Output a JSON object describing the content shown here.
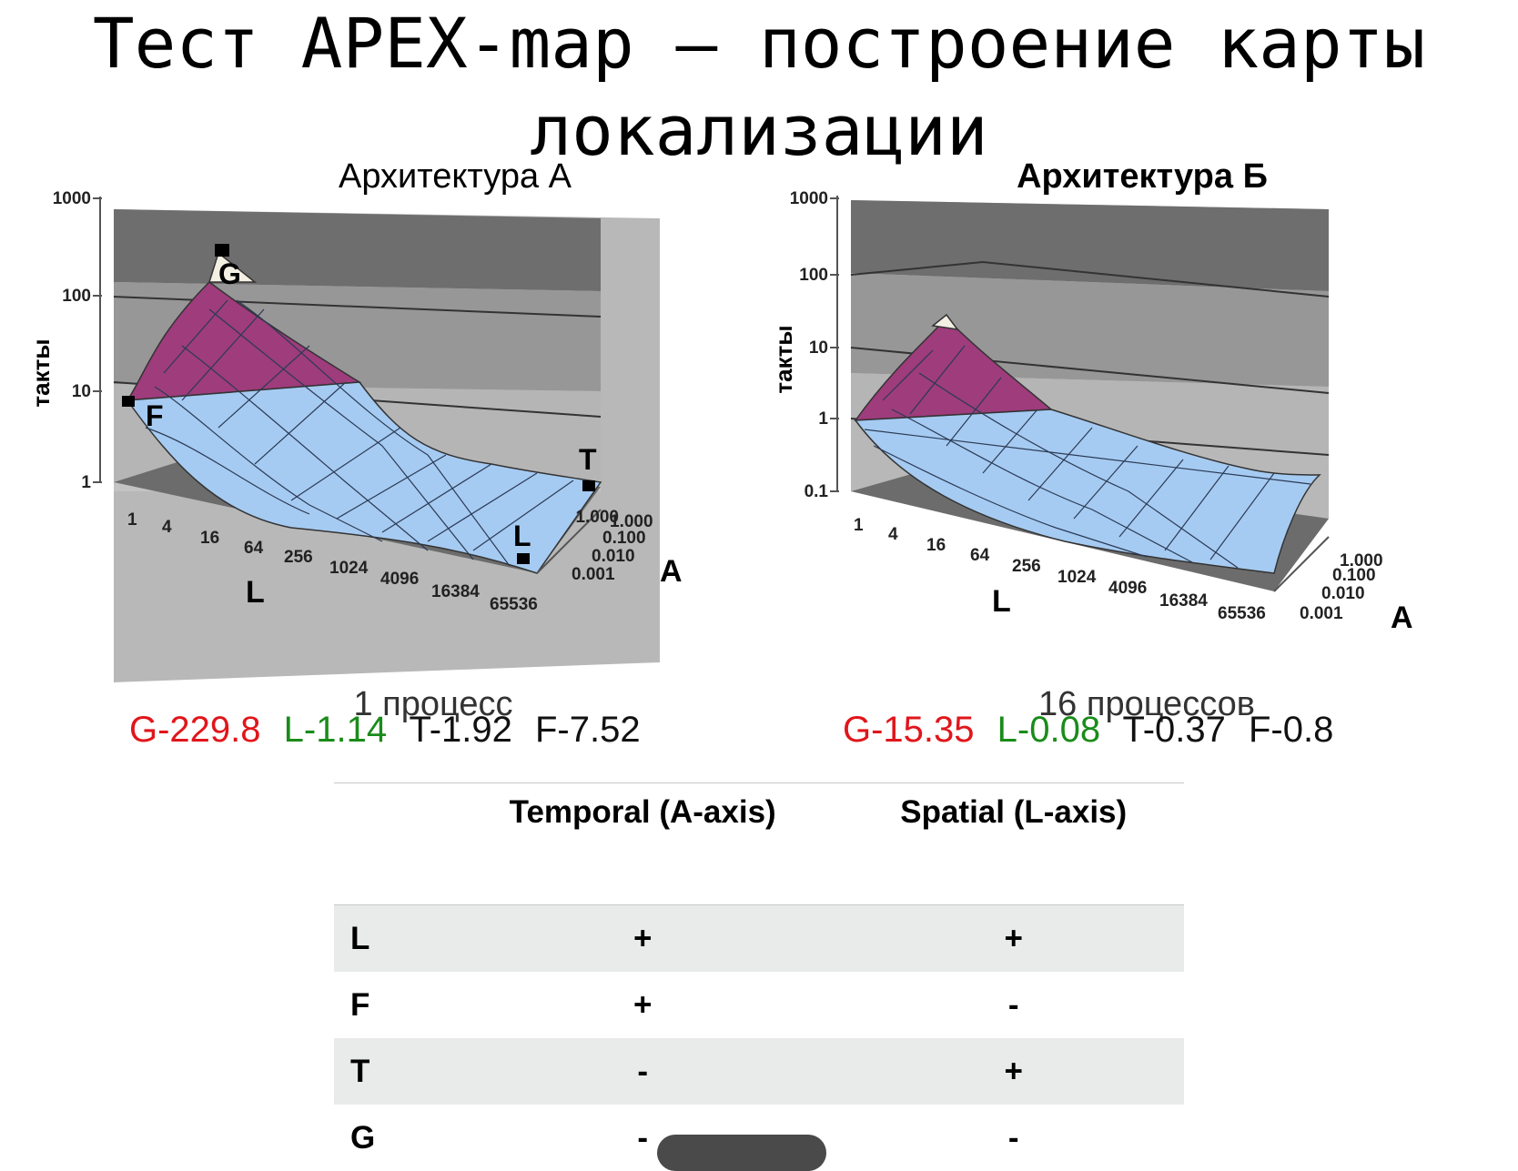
{
  "title": "Тест APEX-map — построение карты локализации",
  "caption_a_partial": "1 процесс",
  "caption_b_partial": "16 процессов",
  "charts": [
    {
      "name": "arch-a",
      "title": "Архитектура А",
      "y_ticks": [
        "1000",
        "100",
        "10",
        "1"
      ],
      "y_label": "такты",
      "x_ticks": [
        "1",
        "4",
        "16",
        "64",
        "256",
        "1024",
        "4096",
        "16384",
        "65536"
      ],
      "x_label": "L",
      "z_ticks": [
        "1.000",
        "0.100",
        "0.010",
        "0.001"
      ],
      "z_label": "A",
      "markers": [
        "G",
        "F",
        "T",
        "L"
      ],
      "values": {
        "G": "G-229.8",
        "L": "L-1.14",
        "T": "T-1.92",
        "F": "F-7.52"
      }
    },
    {
      "name": "arch-b",
      "title": "Архитектура Б",
      "y_ticks": [
        "1000",
        "100",
        "10",
        "1",
        "0.1"
      ],
      "y_label": "такты",
      "x_ticks": [
        "1",
        "4",
        "16",
        "64",
        "256",
        "1024",
        "4096",
        "16384",
        "65536"
      ],
      "x_label": "L",
      "z_ticks": [
        "1.000",
        "0.100",
        "0.010",
        "0.001"
      ],
      "z_label": "A",
      "values": {
        "G": "G-15.35",
        "L": "L-0.08",
        "T": "T-0.37",
        "F": "F-0.8"
      }
    }
  ],
  "table": {
    "headers": [
      "",
      "Temporal (A-axis)",
      "Spatial (L-axis)"
    ],
    "rows": [
      {
        "label": "L",
        "temporal": "+",
        "spatial": "+"
      },
      {
        "label": "F",
        "temporal": "+",
        "spatial": "-"
      },
      {
        "label": "T",
        "temporal": "-",
        "spatial": "+"
      },
      {
        "label": "G",
        "temporal": "-",
        "spatial": "-"
      }
    ]
  },
  "colors": {
    "peak": "#9e3c7c",
    "surface": "#a6cbf2",
    "g_value": "#e0161b",
    "l_value": "#1a8c1a"
  }
}
